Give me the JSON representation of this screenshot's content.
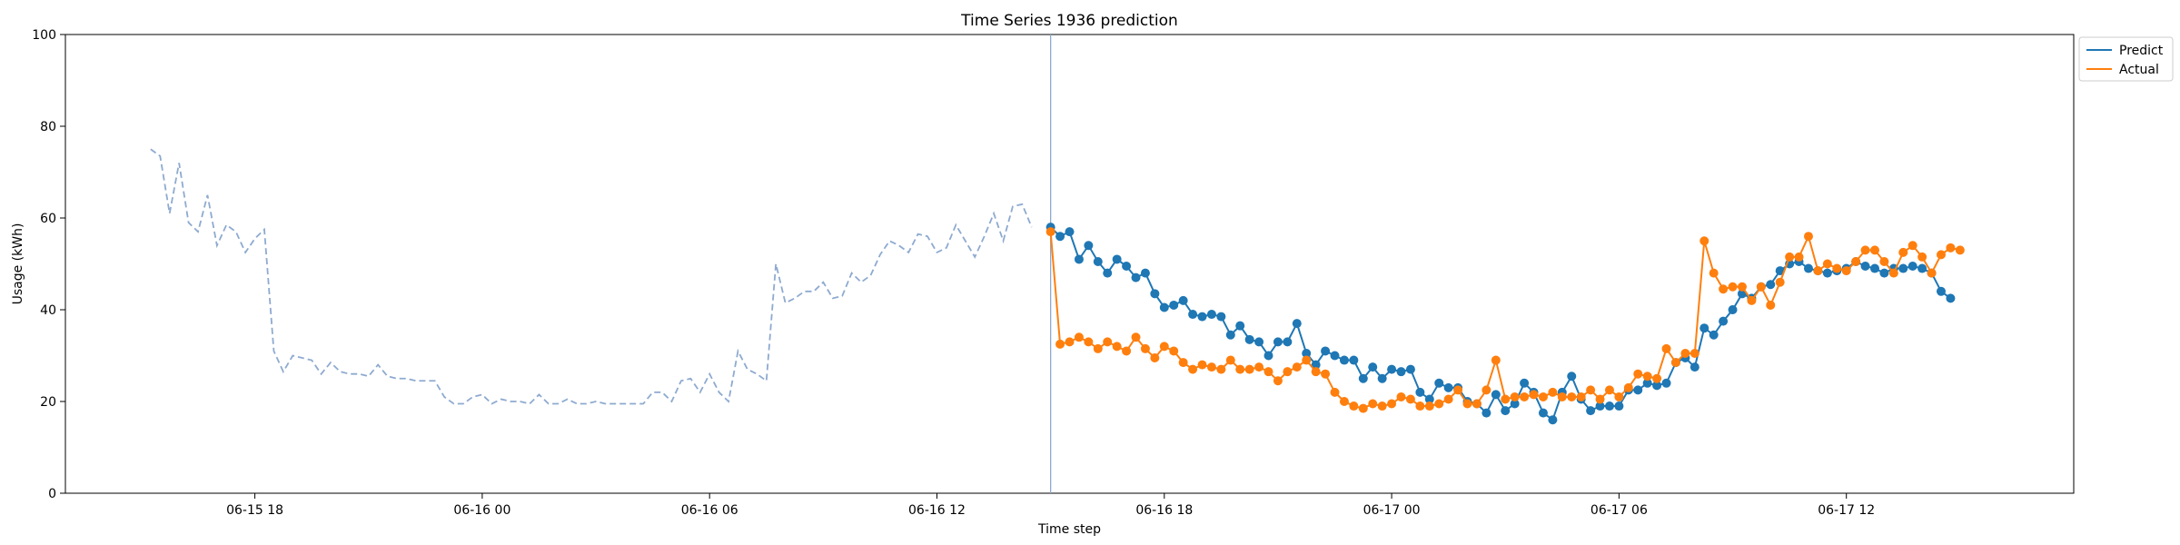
{
  "chart_data": {
    "type": "line",
    "title": "Time Series 1936 prediction",
    "xlabel": "Time step",
    "ylabel": "Usage (kWh)",
    "ylim": [
      0,
      100
    ],
    "xlim": [
      "06-15 13:00",
      "06-17 18:00"
    ],
    "yticks": [
      0,
      20,
      40,
      60,
      80,
      100
    ],
    "xticks": [
      {
        "label": "06-15 18",
        "x": "06-15 18:00"
      },
      {
        "label": "06-16 00",
        "x": "06-16 00:00"
      },
      {
        "label": "06-16 06",
        "x": "06-16 06:00"
      },
      {
        "label": "06-16 12",
        "x": "06-16 12:00"
      },
      {
        "label": "06-16 18",
        "x": "06-16 18:00"
      },
      {
        "label": "06-17 00",
        "x": "06-17 00:00"
      },
      {
        "label": "06-17 06",
        "x": "06-17 06:00"
      },
      {
        "label": "06-17 12",
        "x": "06-17 12:00"
      }
    ],
    "grid": false,
    "legend": "outside-top-right",
    "forecast_start": "06-16 15:00",
    "interval_minutes": 15,
    "history": {
      "start": "06-15 15:15",
      "color": "#8eaad0",
      "style": "dashed",
      "values": [
        75,
        73.5,
        61,
        72,
        59,
        57,
        65,
        54,
        58.5,
        57,
        52.5,
        55.5,
        57.5,
        31,
        26.5,
        30,
        29.5,
        29,
        26,
        28.5,
        26.5,
        26,
        26,
        25.5,
        28,
        25.5,
        25,
        25,
        24.5,
        24.5,
        24.5,
        21,
        19.5,
        19.5,
        21,
        21.5,
        19.5,
        20.5,
        20,
        20,
        19.5,
        21.5,
        19.5,
        19.5,
        20.5,
        19.5,
        19.5,
        20,
        19.5,
        19.5,
        19.5,
        19.5,
        19.5,
        22,
        22,
        20,
        24.5,
        25,
        22,
        26,
        22,
        20,
        31,
        27,
        26,
        24.5,
        50,
        41.5,
        42.5,
        44,
        44,
        46,
        42.5,
        43,
        48,
        46,
        47.5,
        52,
        55,
        54,
        52.5,
        56.5,
        56,
        52.5,
        53.5,
        58.5,
        55,
        51.5,
        56,
        61,
        55,
        62.5,
        63,
        58
      ]
    },
    "series": [
      {
        "name": "Predict",
        "color": "#1f77b4",
        "values": [
          58,
          56,
          57,
          51,
          54,
          50.5,
          48,
          51,
          49.5,
          47,
          48,
          43.5,
          40.5,
          41,
          42,
          39,
          38.5,
          39,
          38.5,
          34.5,
          36.5,
          33.5,
          33,
          30,
          33,
          33,
          37,
          30.5,
          28,
          31,
          30,
          29,
          29,
          25,
          27.5,
          25,
          27,
          26.5,
          27,
          22,
          20.5,
          24,
          23,
          23,
          20,
          19.5,
          17.5,
          21.5,
          18,
          19.5,
          24,
          22,
          17.5,
          16,
          22,
          25.5,
          20.5,
          18,
          19,
          19,
          19,
          22.5,
          22.5,
          24,
          23.5,
          24,
          28.5,
          29.5,
          27.5,
          36,
          34.5,
          37.5,
          40,
          43.5,
          42.5,
          45,
          45.5,
          48.5,
          50,
          50.5,
          49,
          48.5,
          48,
          48.5,
          49,
          50.5,
          49.5,
          49,
          48,
          49,
          49,
          49.5,
          49,
          48,
          44,
          42.5
        ]
      },
      {
        "name": "Actual",
        "color": "#ff7f0e",
        "values": [
          57,
          32.5,
          33,
          34,
          33,
          31.5,
          33,
          32,
          31,
          34,
          31.5,
          29.5,
          32,
          31,
          28.5,
          27,
          28,
          27.5,
          27,
          29,
          27,
          27,
          27.5,
          26.5,
          24.5,
          26.5,
          27.5,
          29,
          26.5,
          26,
          22,
          20,
          19,
          18.5,
          19.5,
          19,
          19.5,
          21,
          20.5,
          19,
          19,
          19.5,
          20.5,
          22.5,
          19.5,
          19.5,
          22.5,
          29,
          20.5,
          21,
          21,
          21.5,
          21,
          22,
          21,
          21,
          21,
          22.5,
          20.5,
          22.5,
          21,
          23,
          26,
          25.5,
          25,
          31.5,
          28.5,
          30.5,
          30.5,
          55,
          48,
          44.5,
          45,
          45,
          42,
          45,
          41,
          46,
          51.5,
          51.5,
          56,
          48.5,
          50,
          49,
          48.5,
          50.5,
          53,
          53,
          50.5,
          48,
          52.5,
          54,
          51.5,
          48,
          52,
          53.5,
          53
        ]
      }
    ]
  }
}
